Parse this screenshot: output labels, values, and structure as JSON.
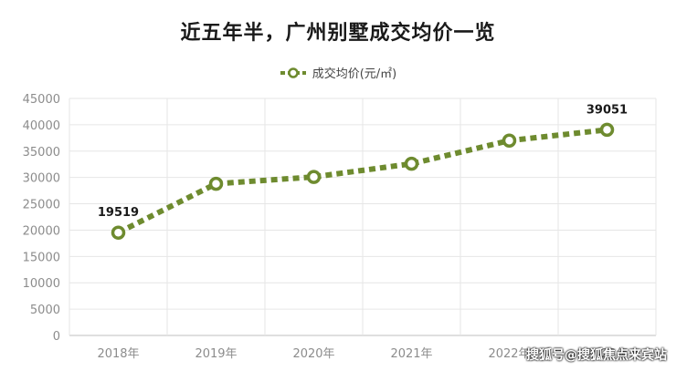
{
  "chart_data": {
    "type": "line",
    "title": "近五年半，广州别墅成交均价一览",
    "categories": [
      "2018年",
      "2019年",
      "2020年",
      "2021年",
      "2022年",
      "2023年"
    ],
    "series": [
      {
        "name": "成交均价(元/㎡)",
        "values": [
          19519,
          28800,
          30100,
          32600,
          37000,
          39051
        ],
        "color": "#6e8b2f"
      }
    ],
    "data_labels": [
      {
        "index": 0,
        "text": "19519"
      },
      {
        "index": 5,
        "text": "39051"
      }
    ],
    "ylim": [
      0,
      45000
    ],
    "yticks": [
      0,
      5000,
      10000,
      15000,
      20000,
      25000,
      30000,
      35000,
      40000,
      45000
    ],
    "grid": true,
    "legend_position": "top-center"
  },
  "watermark": "搜狐号@搜狐焦点来宾站"
}
